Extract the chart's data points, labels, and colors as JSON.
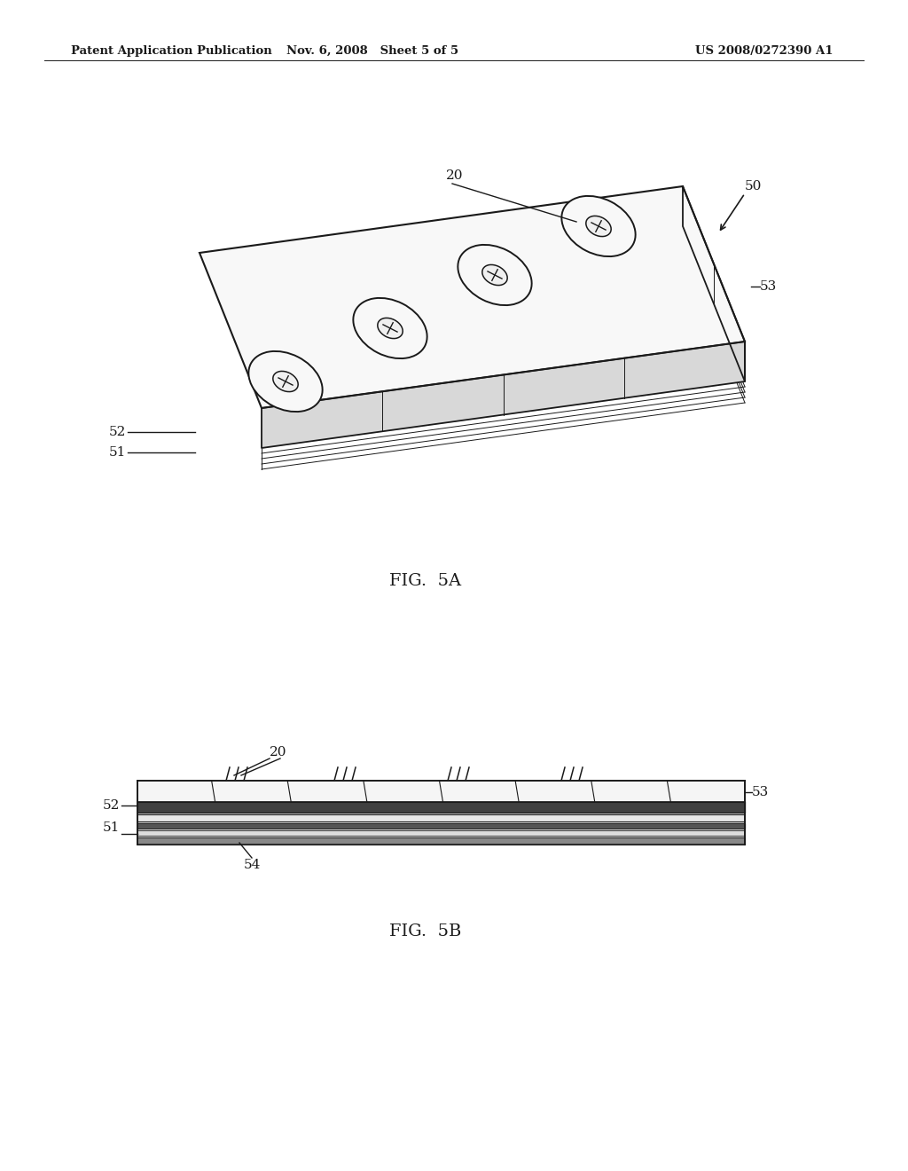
{
  "bg_color": "#ffffff",
  "line_color": "#1a1a1a",
  "header_left": "Patent Application Publication",
  "header_mid": "Nov. 6, 2008   Sheet 5 of 5",
  "header_right": "US 2008/0272390 A1",
  "fig5a_label": "FIG.  5A",
  "fig5b_label": "FIG.  5B",
  "label_50": "50",
  "label_20": "20",
  "label_51": "51",
  "label_52": "52",
  "label_53": "53",
  "label_54": "54"
}
